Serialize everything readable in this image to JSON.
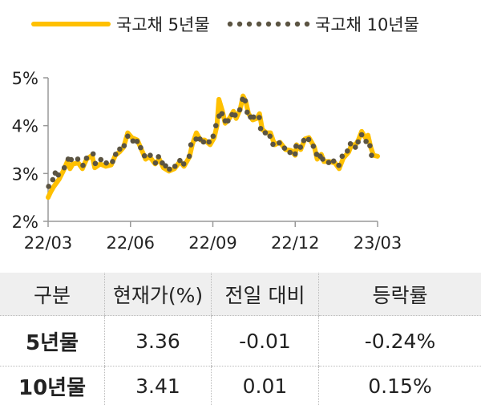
{
  "chart_data": {
    "type": "line",
    "title": "",
    "xlabel": "",
    "ylabel": "",
    "x_unit": "months since 22/03",
    "xlim": [
      0,
      12
    ],
    "ylim": [
      2,
      5
    ],
    "x_ticks": [
      {
        "pos": 0,
        "label": "22/03"
      },
      {
        "pos": 3,
        "label": "22/06"
      },
      {
        "pos": 6,
        "label": "22/09"
      },
      {
        "pos": 9,
        "label": "22/12"
      },
      {
        "pos": 12,
        "label": "23/03"
      }
    ],
    "y_ticks": [
      {
        "value": 5,
        "label": "5%"
      },
      {
        "value": 4,
        "label": "4%"
      },
      {
        "value": 3,
        "label": "3%"
      },
      {
        "value": 2,
        "label": "2%"
      }
    ],
    "grid": false,
    "legend_position": "top",
    "series": [
      {
        "name": "국고채 5년물",
        "style": "line",
        "color": "#FFC000",
        "points": [
          [
            0,
            2.5
          ],
          [
            0.1,
            2.62
          ],
          [
            0.2,
            2.72
          ],
          [
            0.3,
            2.8
          ],
          [
            0.4,
            2.88
          ],
          [
            0.55,
            3.05
          ],
          [
            0.7,
            3.25
          ],
          [
            0.8,
            3.1
          ],
          [
            0.9,
            3.2
          ],
          [
            1.1,
            3.22
          ],
          [
            1.25,
            3.1
          ],
          [
            1.4,
            3.3
          ],
          [
            1.6,
            3.38
          ],
          [
            1.7,
            3.12
          ],
          [
            1.9,
            3.2
          ],
          [
            2.1,
            3.15
          ],
          [
            2.3,
            3.18
          ],
          [
            2.45,
            3.38
          ],
          [
            2.6,
            3.45
          ],
          [
            2.75,
            3.55
          ],
          [
            2.9,
            3.85
          ],
          [
            3.05,
            3.75
          ],
          [
            3.25,
            3.7
          ],
          [
            3.4,
            3.5
          ],
          [
            3.55,
            3.3
          ],
          [
            3.7,
            3.35
          ],
          [
            3.9,
            3.2
          ],
          [
            4.05,
            3.3
          ],
          [
            4.2,
            3.12
          ],
          [
            4.4,
            3.05
          ],
          [
            4.6,
            3.1
          ],
          [
            4.8,
            3.25
          ],
          [
            4.95,
            3.15
          ],
          [
            5.15,
            3.35
          ],
          [
            5.25,
            3.6
          ],
          [
            5.4,
            3.85
          ],
          [
            5.55,
            3.7
          ],
          [
            5.7,
            3.7
          ],
          [
            5.9,
            3.6
          ],
          [
            6.05,
            3.75
          ],
          [
            6.15,
            4.0
          ],
          [
            6.22,
            4.55
          ],
          [
            6.35,
            4.3
          ],
          [
            6.45,
            4.05
          ],
          [
            6.6,
            4.15
          ],
          [
            6.75,
            4.3
          ],
          [
            6.85,
            4.15
          ],
          [
            7.0,
            4.35
          ],
          [
            7.1,
            4.62
          ],
          [
            7.2,
            4.5
          ],
          [
            7.3,
            4.25
          ],
          [
            7.45,
            4.12
          ],
          [
            7.6,
            4.15
          ],
          [
            7.7,
            4.25
          ],
          [
            7.8,
            3.92
          ],
          [
            7.95,
            3.85
          ],
          [
            8.1,
            3.85
          ],
          [
            8.25,
            3.6
          ],
          [
            8.45,
            3.65
          ],
          [
            8.65,
            3.5
          ],
          [
            8.85,
            3.48
          ],
          [
            9.0,
            3.38
          ],
          [
            9.05,
            3.6
          ],
          [
            9.2,
            3.5
          ],
          [
            9.35,
            3.72
          ],
          [
            9.5,
            3.75
          ],
          [
            9.7,
            3.55
          ],
          [
            9.8,
            3.3
          ],
          [
            9.95,
            3.4
          ],
          [
            10.05,
            3.25
          ],
          [
            10.25,
            3.25
          ],
          [
            10.45,
            3.22
          ],
          [
            10.6,
            3.1
          ],
          [
            10.75,
            3.32
          ],
          [
            10.95,
            3.45
          ],
          [
            11.05,
            3.6
          ],
          [
            11.2,
            3.6
          ],
          [
            11.3,
            3.7
          ],
          [
            11.42,
            3.88
          ],
          [
            11.55,
            3.75
          ],
          [
            11.65,
            3.8
          ],
          [
            11.75,
            3.55
          ],
          [
            11.85,
            3.38
          ],
          [
            12.0,
            3.36
          ]
        ]
      },
      {
        "name": "국고채 10년물",
        "style": "dots",
        "color": "#5B5442",
        "points": [
          [
            0.02,
            2.73
          ],
          [
            0.17,
            2.87
          ],
          [
            0.26,
            3.01
          ],
          [
            0.37,
            2.97
          ],
          [
            0.59,
            3.12
          ],
          [
            0.73,
            3.3
          ],
          [
            0.84,
            3.29
          ],
          [
            1.08,
            3.3
          ],
          [
            1.27,
            3.17
          ],
          [
            1.4,
            3.32
          ],
          [
            1.64,
            3.41
          ],
          [
            1.72,
            3.21
          ],
          [
            1.92,
            3.29
          ],
          [
            2.12,
            3.22
          ],
          [
            2.35,
            3.25
          ],
          [
            2.46,
            3.4
          ],
          [
            2.61,
            3.51
          ],
          [
            2.77,
            3.58
          ],
          [
            2.9,
            3.78
          ],
          [
            3.09,
            3.68
          ],
          [
            3.24,
            3.67
          ],
          [
            3.37,
            3.54
          ],
          [
            3.51,
            3.37
          ],
          [
            3.72,
            3.38
          ],
          [
            3.91,
            3.22
          ],
          [
            4.02,
            3.35
          ],
          [
            4.16,
            3.22
          ],
          [
            4.28,
            3.16
          ],
          [
            4.42,
            3.09
          ],
          [
            4.62,
            3.15
          ],
          [
            4.8,
            3.27
          ],
          [
            4.94,
            3.2
          ],
          [
            5.14,
            3.36
          ],
          [
            5.2,
            3.6
          ],
          [
            5.39,
            3.72
          ],
          [
            5.53,
            3.72
          ],
          [
            5.66,
            3.66
          ],
          [
            5.86,
            3.66
          ],
          [
            6.01,
            3.78
          ],
          [
            6.11,
            4.0
          ],
          [
            6.23,
            4.2
          ],
          [
            6.33,
            4.25
          ],
          [
            6.45,
            4.1
          ],
          [
            6.55,
            4.1
          ],
          [
            6.7,
            4.23
          ],
          [
            6.81,
            4.22
          ],
          [
            6.98,
            4.33
          ],
          [
            7.08,
            4.55
          ],
          [
            7.18,
            4.52
          ],
          [
            7.25,
            4.28
          ],
          [
            7.37,
            4.18
          ],
          [
            7.48,
            4.18
          ],
          [
            7.69,
            4.17
          ],
          [
            7.74,
            3.94
          ],
          [
            7.91,
            3.85
          ],
          [
            8.08,
            3.78
          ],
          [
            8.19,
            3.61
          ],
          [
            8.42,
            3.64
          ],
          [
            8.61,
            3.53
          ],
          [
            8.81,
            3.44
          ],
          [
            9.0,
            3.41
          ],
          [
            9.03,
            3.57
          ],
          [
            9.19,
            3.55
          ],
          [
            9.31,
            3.69
          ],
          [
            9.49,
            3.71
          ],
          [
            9.66,
            3.57
          ],
          [
            9.78,
            3.4
          ],
          [
            9.91,
            3.36
          ],
          [
            10.0,
            3.3
          ],
          [
            10.22,
            3.23
          ],
          [
            10.4,
            3.26
          ],
          [
            10.59,
            3.17
          ],
          [
            10.71,
            3.36
          ],
          [
            10.9,
            3.47
          ],
          [
            11.01,
            3.62
          ],
          [
            11.19,
            3.55
          ],
          [
            11.29,
            3.66
          ],
          [
            11.42,
            3.81
          ],
          [
            11.58,
            3.67
          ],
          [
            11.72,
            3.58
          ],
          [
            11.78,
            3.38
          ]
        ]
      }
    ]
  },
  "table": {
    "headers": [
      "구분",
      "현재가(%)",
      "전일 대비",
      "등락률"
    ],
    "rows": [
      [
        "5년물",
        "3.36",
        "-0.01",
        "-0.24%"
      ],
      [
        "10년물",
        "3.41",
        "0.01",
        "0.15%"
      ]
    ]
  }
}
